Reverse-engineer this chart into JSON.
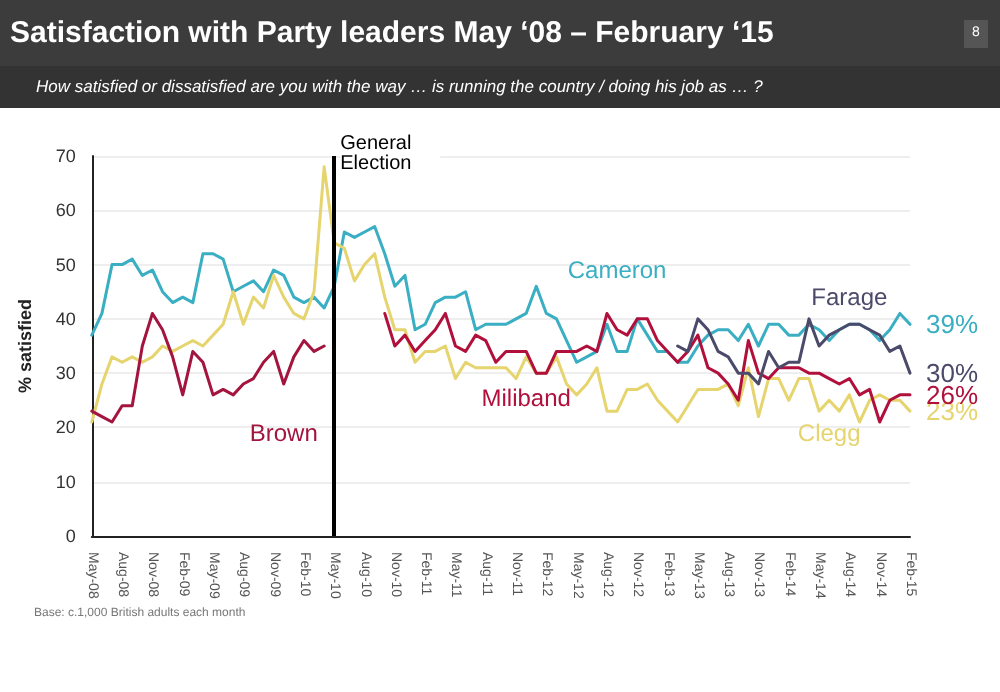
{
  "chart_data": {
    "type": "line",
    "title": "Satisfaction with Party leaders May ‘08 – February ‘15",
    "subtitle": "How satisfied or dissatisfied are you with the way … is running the country / doing his job as … ?",
    "ylabel": "% satisfied",
    "categories": [
      "May-08",
      null,
      null,
      "Aug-08",
      null,
      null,
      "Nov-08",
      null,
      null,
      "Feb-09",
      null,
      null,
      "May-09",
      null,
      null,
      "Aug-09",
      null,
      null,
      "Nov-09",
      null,
      null,
      "Feb-10",
      null,
      null,
      "May-10",
      null,
      null,
      "Aug-10",
      null,
      null,
      "Nov-10",
      null,
      null,
      "Feb-11",
      null,
      null,
      "May-11",
      null,
      null,
      "Aug-11",
      null,
      null,
      "Nov-11",
      null,
      null,
      "Feb-12",
      null,
      null,
      "May-12",
      null,
      null,
      "Aug-12",
      null,
      null,
      "Nov-12",
      null,
      null,
      "Feb-13",
      null,
      null,
      "May-13",
      null,
      null,
      "Aug-13",
      null,
      null,
      "Nov-13",
      null,
      null,
      "Feb-14",
      null,
      null,
      "May-14",
      null,
      null,
      "Aug-14",
      null,
      null,
      "Nov-14",
      null,
      null,
      "Feb-15"
    ],
    "series": [
      {
        "name": "Cameron",
        "color": "#3aaec2",
        "values": [
          37,
          41,
          50,
          50,
          51,
          48,
          49,
          45,
          43,
          44,
          43,
          52,
          52,
          51,
          45,
          46,
          47,
          45,
          49,
          48,
          44,
          43,
          44,
          42,
          46,
          56,
          55,
          56,
          57,
          52,
          46,
          48,
          38,
          39,
          43,
          44,
          44,
          45,
          38,
          39,
          39,
          39,
          40,
          41,
          46,
          41,
          40,
          36,
          32,
          33,
          34,
          39,
          34,
          34,
          40,
          37,
          34,
          34,
          32,
          32,
          35,
          37,
          38,
          38,
          36,
          39,
          35,
          39,
          39,
          37,
          37,
          39,
          38,
          36,
          38,
          39,
          39,
          38,
          36,
          38,
          41,
          39
        ],
        "value_labels": [
          null,
          null,
          null,
          null,
          null,
          null,
          null,
          null,
          null,
          null,
          null,
          null,
          null,
          null,
          null,
          null,
          null,
          null,
          null,
          null,
          null,
          null,
          null,
          null,
          null,
          null,
          null,
          null,
          null,
          null,
          null,
          null,
          null,
          null,
          null,
          null,
          null,
          null,
          null,
          null,
          null,
          null,
          null,
          null,
          null,
          null,
          null,
          null,
          null,
          null,
          null,
          null,
          null,
          null,
          null,
          null,
          null,
          null,
          null,
          null,
          null,
          null,
          null,
          null,
          null,
          null,
          null,
          null,
          null,
          null,
          null,
          null,
          null,
          null,
          null,
          null,
          null,
          null,
          null,
          null,
          null,
          "39%"
        ]
      },
      {
        "name": "Clegg",
        "color": "#e6d46e",
        "values": [
          21,
          28,
          33,
          32,
          33,
          32,
          33,
          35,
          34,
          35,
          36,
          35,
          37,
          39,
          45,
          39,
          44,
          42,
          48,
          44,
          41,
          40,
          45,
          68,
          54,
          53,
          47,
          50,
          52,
          44,
          38,
          38,
          32,
          34,
          34,
          35,
          29,
          32,
          31,
          31,
          31,
          31,
          29,
          33,
          30,
          30,
          33,
          28,
          26,
          28,
          31,
          23,
          23,
          27,
          27,
          28,
          25,
          23,
          21,
          24,
          27,
          27,
          27,
          28,
          24,
          31,
          22,
          29,
          29,
          25,
          29,
          29,
          23,
          25,
          23,
          26,
          21,
          25,
          26,
          25,
          25,
          23
        ],
        "value_labels": [
          null,
          null,
          null,
          null,
          null,
          null,
          null,
          null,
          null,
          null,
          null,
          null,
          null,
          null,
          null,
          null,
          null,
          null,
          null,
          null,
          null,
          null,
          null,
          null,
          null,
          null,
          null,
          null,
          null,
          null,
          null,
          null,
          null,
          null,
          null,
          null,
          null,
          null,
          null,
          null,
          null,
          null,
          null,
          null,
          null,
          null,
          null,
          null,
          null,
          null,
          null,
          null,
          null,
          null,
          null,
          null,
          null,
          null,
          null,
          null,
          null,
          null,
          null,
          null,
          null,
          null,
          null,
          null,
          null,
          null,
          null,
          null,
          null,
          null,
          null,
          null,
          null,
          null,
          null,
          null,
          null,
          "23%"
        ]
      },
      {
        "name": "Brown",
        "color": "#a3143f",
        "values": [
          23,
          22,
          21,
          24,
          24,
          35,
          41,
          38,
          33,
          26,
          34,
          32,
          26,
          27,
          26,
          28,
          29,
          32,
          34,
          28,
          33,
          36,
          34,
          35,
          null,
          null,
          null,
          null,
          null,
          null,
          null,
          null,
          null,
          null,
          null,
          null,
          null,
          null,
          null,
          null,
          null,
          null,
          null,
          null,
          null,
          null,
          null,
          null,
          null,
          null,
          null,
          null,
          null,
          null,
          null,
          null,
          null,
          null,
          null,
          null,
          null,
          null,
          null,
          null,
          null,
          null,
          null,
          null,
          null,
          null,
          null,
          null,
          null,
          null,
          null,
          null,
          null,
          null,
          null,
          null,
          null,
          null
        ]
      },
      {
        "name": "Miliband",
        "color": "#b1103c",
        "values": [
          null,
          null,
          null,
          null,
          null,
          null,
          null,
          null,
          null,
          null,
          null,
          null,
          null,
          null,
          null,
          null,
          null,
          null,
          null,
          null,
          null,
          null,
          null,
          null,
          null,
          null,
          null,
          null,
          null,
          41,
          35,
          37,
          34,
          36,
          38,
          41,
          35,
          34,
          37,
          36,
          32,
          34,
          34,
          34,
          30,
          30,
          34,
          34,
          34,
          35,
          34,
          41,
          38,
          37,
          40,
          40,
          36,
          34,
          32,
          34,
          37,
          31,
          30,
          28,
          25,
          36,
          30,
          29,
          31,
          31,
          31,
          30,
          30,
          29,
          28,
          29,
          26,
          27,
          21,
          25,
          26,
          26
        ],
        "value_labels": [
          null,
          null,
          null,
          null,
          null,
          null,
          null,
          null,
          null,
          null,
          null,
          null,
          null,
          null,
          null,
          null,
          null,
          null,
          null,
          null,
          null,
          null,
          null,
          null,
          null,
          null,
          null,
          null,
          null,
          null,
          null,
          null,
          null,
          null,
          null,
          null,
          null,
          null,
          null,
          null,
          null,
          null,
          null,
          null,
          null,
          null,
          null,
          null,
          null,
          null,
          null,
          null,
          null,
          null,
          null,
          null,
          null,
          null,
          null,
          null,
          null,
          null,
          null,
          null,
          null,
          null,
          null,
          null,
          null,
          null,
          null,
          null,
          null,
          null,
          null,
          null,
          null,
          null,
          null,
          null,
          null,
          "26%"
        ]
      },
      {
        "name": "Farage",
        "color": "#4c4a6a",
        "values": [
          null,
          null,
          null,
          null,
          null,
          null,
          null,
          null,
          null,
          null,
          null,
          null,
          null,
          null,
          null,
          null,
          null,
          null,
          null,
          null,
          null,
          null,
          null,
          null,
          null,
          null,
          null,
          null,
          null,
          null,
          null,
          null,
          null,
          null,
          null,
          null,
          null,
          null,
          null,
          null,
          null,
          null,
          null,
          null,
          null,
          null,
          null,
          null,
          null,
          null,
          null,
          null,
          null,
          null,
          null,
          null,
          null,
          null,
          35,
          34,
          40,
          38,
          34,
          33,
          30,
          30,
          28,
          34,
          31,
          32,
          32,
          40,
          35,
          37,
          38,
          39,
          39,
          38,
          37,
          34,
          35,
          30
        ],
        "value_labels": [
          null,
          null,
          null,
          null,
          null,
          null,
          null,
          null,
          null,
          null,
          null,
          null,
          null,
          null,
          null,
          null,
          null,
          null,
          null,
          null,
          null,
          null,
          null,
          null,
          null,
          null,
          null,
          null,
          null,
          null,
          null,
          null,
          null,
          null,
          null,
          null,
          null,
          null,
          null,
          null,
          null,
          null,
          null,
          null,
          null,
          null,
          null,
          null,
          null,
          null,
          null,
          null,
          null,
          null,
          null,
          null,
          null,
          null,
          null,
          null,
          null,
          null,
          null,
          null,
          null,
          null,
          null,
          null,
          null,
          null,
          null,
          null,
          null,
          null,
          null,
          null,
          null,
          null,
          null,
          null,
          null,
          "30%"
        ]
      }
    ],
    "ylim": [
      0,
      70
    ],
    "yticks": [
      0,
      10,
      20,
      30,
      40,
      50,
      60,
      70
    ],
    "grid": "y",
    "legend": false,
    "marker": "none",
    "line_style": "solid",
    "ref_lines": [
      {
        "axis": "x",
        "value": "May-10",
        "label": "General Election",
        "color": "#000000"
      }
    ],
    "annotations": [
      "8",
      "Base: c.1,000 British adults each month"
    ]
  }
}
